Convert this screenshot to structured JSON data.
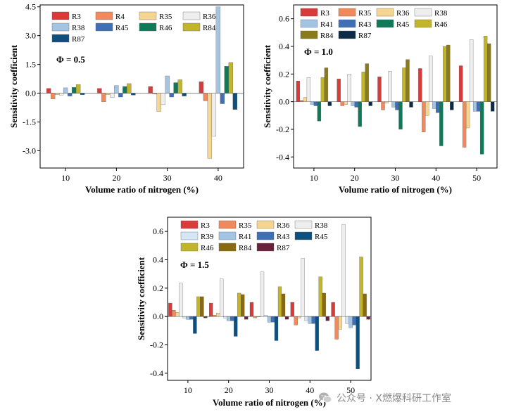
{
  "watermark": {
    "text": "公众号 · X燃爆科研工作室",
    "icon": "wechat-icon"
  },
  "chart_data": [
    {
      "type": "bar",
      "title": "",
      "annotation": "Φ = 0.5",
      "xlabel": "Volume ratio of nitrogen (%)",
      "ylabel": "Sensitivity coefficient",
      "categories": [
        "10",
        "20",
        "30",
        "40"
      ],
      "ylim": [
        -3.9,
        4.6
      ],
      "yticks": [
        -3.0,
        -1.5,
        0.0,
        1.5,
        3.0,
        4.5
      ],
      "ytick_labels": [
        "-3.0",
        "-1.5",
        "0.0",
        "1.5",
        "3.0",
        "4.5"
      ],
      "legend_cols": 4,
      "legend_position": "top-left",
      "series": [
        {
          "name": "R3",
          "color": "#d93a3a",
          "values": [
            0.25,
            0.25,
            0.35,
            0.6
          ]
        },
        {
          "name": "R4",
          "color": "#f08a5d",
          "values": [
            -0.3,
            -0.45,
            -0.05,
            -0.4
          ]
        },
        {
          "name": "R35",
          "color": "#f5d590",
          "values": [
            -0.08,
            -0.08,
            -0.95,
            -3.4
          ]
        },
        {
          "name": "R36",
          "color": "#eeeeee",
          "values": [
            -0.1,
            -0.22,
            -0.6,
            -2.25
          ]
        },
        {
          "name": "R38",
          "color": "#a3c4e3",
          "values": [
            0.28,
            0.4,
            0.9,
            4.5
          ]
        },
        {
          "name": "R45",
          "color": "#3f6fb5",
          "values": [
            -0.15,
            -0.2,
            -0.2,
            -0.55
          ]
        },
        {
          "name": "R46",
          "color": "#0e7a5a",
          "values": [
            0.3,
            0.35,
            0.55,
            1.4
          ]
        },
        {
          "name": "R84",
          "color": "#c2b52a",
          "values": [
            0.45,
            0.5,
            0.7,
            1.6
          ]
        },
        {
          "name": "R87",
          "color": "#0e4f7d",
          "values": [
            -0.08,
            -0.1,
            -0.15,
            -0.85
          ]
        }
      ]
    },
    {
      "type": "bar",
      "title": "",
      "annotation": "Φ = 1.0",
      "xlabel": "Volume ratio of nitrogen (%)",
      "ylabel": "Sensitivity coefficient",
      "categories": [
        "10",
        "20",
        "30",
        "40",
        "50"
      ],
      "ylim": [
        -0.48,
        0.7
      ],
      "yticks": [
        -0.4,
        -0.2,
        0.0,
        0.2,
        0.4,
        0.6
      ],
      "ytick_labels": [
        "-0.4",
        "-0.2",
        "0.0",
        "0.2",
        "0.4",
        "0.6"
      ],
      "legend_cols": 4,
      "legend_position": "top-left",
      "series": [
        {
          "name": "R3",
          "color": "#d93a3a",
          "values": [
            0.15,
            0.165,
            0.18,
            0.24,
            0.26
          ]
        },
        {
          "name": "R35",
          "color": "#f08a5d",
          "values": [
            0.01,
            -0.03,
            -0.06,
            -0.22,
            -0.33
          ]
        },
        {
          "name": "R36",
          "color": "#f5d590",
          "values": [
            0.03,
            -0.02,
            -0.01,
            -0.1,
            -0.19
          ]
        },
        {
          "name": "R38",
          "color": "#eeeeee",
          "values": [
            0.175,
            0.2,
            0.22,
            0.33,
            0.45
          ]
        },
        {
          "name": "R41",
          "color": "#a3c4e3",
          "values": [
            -0.02,
            -0.03,
            -0.04,
            -0.05,
            -0.07
          ]
        },
        {
          "name": "R43",
          "color": "#3f6fb5",
          "values": [
            -0.03,
            -0.04,
            -0.06,
            -0.08,
            -0.07
          ]
        },
        {
          "name": "R45",
          "color": "#0e7a5a",
          "values": [
            -0.14,
            -0.18,
            -0.2,
            -0.32,
            -0.38
          ]
        },
        {
          "name": "R46",
          "color": "#c2b52a",
          "values": [
            0.175,
            0.215,
            0.245,
            0.4,
            0.475
          ]
        },
        {
          "name": "R84",
          "color": "#8a7a1a",
          "values": [
            0.245,
            0.275,
            0.305,
            0.41,
            0.42
          ]
        },
        {
          "name": "R87",
          "color": "#0a2a45",
          "values": [
            -0.03,
            -0.03,
            -0.04,
            -0.06,
            -0.07
          ]
        }
      ]
    },
    {
      "type": "bar",
      "title": "",
      "annotation": "Φ = 1.5",
      "xlabel": "Volume ratio of nitrogen (%)",
      "ylabel": "Sensitivity coefficient",
      "categories": [
        "10",
        "20",
        "30",
        "40",
        "50"
      ],
      "ylim": [
        -0.45,
        0.7
      ],
      "yticks": [
        -0.4,
        -0.2,
        0.0,
        0.2,
        0.4,
        0.6
      ],
      "ytick_labels": [
        "-0.4",
        "-0.2",
        "0.0",
        "0.2",
        "0.4",
        "0.6"
      ],
      "legend_cols": 4,
      "legend_position": "top-left",
      "series": [
        {
          "name": "R3",
          "color": "#d93a3a",
          "values": [
            0.095,
            0.095,
            0.1,
            0.1,
            0.1
          ]
        },
        {
          "name": "R35",
          "color": "#f08a5d",
          "values": [
            0.045,
            0.01,
            -0.01,
            -0.06,
            -0.16
          ]
        },
        {
          "name": "R36",
          "color": "#f5d590",
          "values": [
            0.03,
            0.025,
            0.0,
            -0.01,
            -0.09
          ]
        },
        {
          "name": "R38",
          "color": "#eeeeee",
          "values": [
            0.235,
            0.265,
            0.315,
            0.41,
            0.65
          ]
        },
        {
          "name": "R39",
          "color": "#d5e6f5",
          "values": [
            -0.01,
            -0.01,
            0.01,
            -0.03,
            -0.05
          ]
        },
        {
          "name": "R41",
          "color": "#a3c4e3",
          "values": [
            -0.02,
            -0.03,
            -0.04,
            -0.05,
            -0.08
          ]
        },
        {
          "name": "R43",
          "color": "#3f6fb5",
          "values": [
            -0.02,
            -0.03,
            -0.04,
            -0.05,
            -0.06
          ]
        },
        {
          "name": "R45",
          "color": "#0e4f7d",
          "values": [
            -0.12,
            -0.14,
            -0.17,
            -0.24,
            -0.37
          ]
        },
        {
          "name": "R46",
          "color": "#c2b52a",
          "values": [
            0.14,
            0.165,
            0.21,
            0.28,
            0.42
          ]
        },
        {
          "name": "R84",
          "color": "#8a6a10",
          "values": [
            0.14,
            0.155,
            0.16,
            0.165,
            0.16
          ]
        },
        {
          "name": "R87",
          "color": "#6a1f3a",
          "values": [
            -0.01,
            -0.02,
            -0.02,
            -0.03,
            -0.02
          ]
        }
      ]
    }
  ]
}
